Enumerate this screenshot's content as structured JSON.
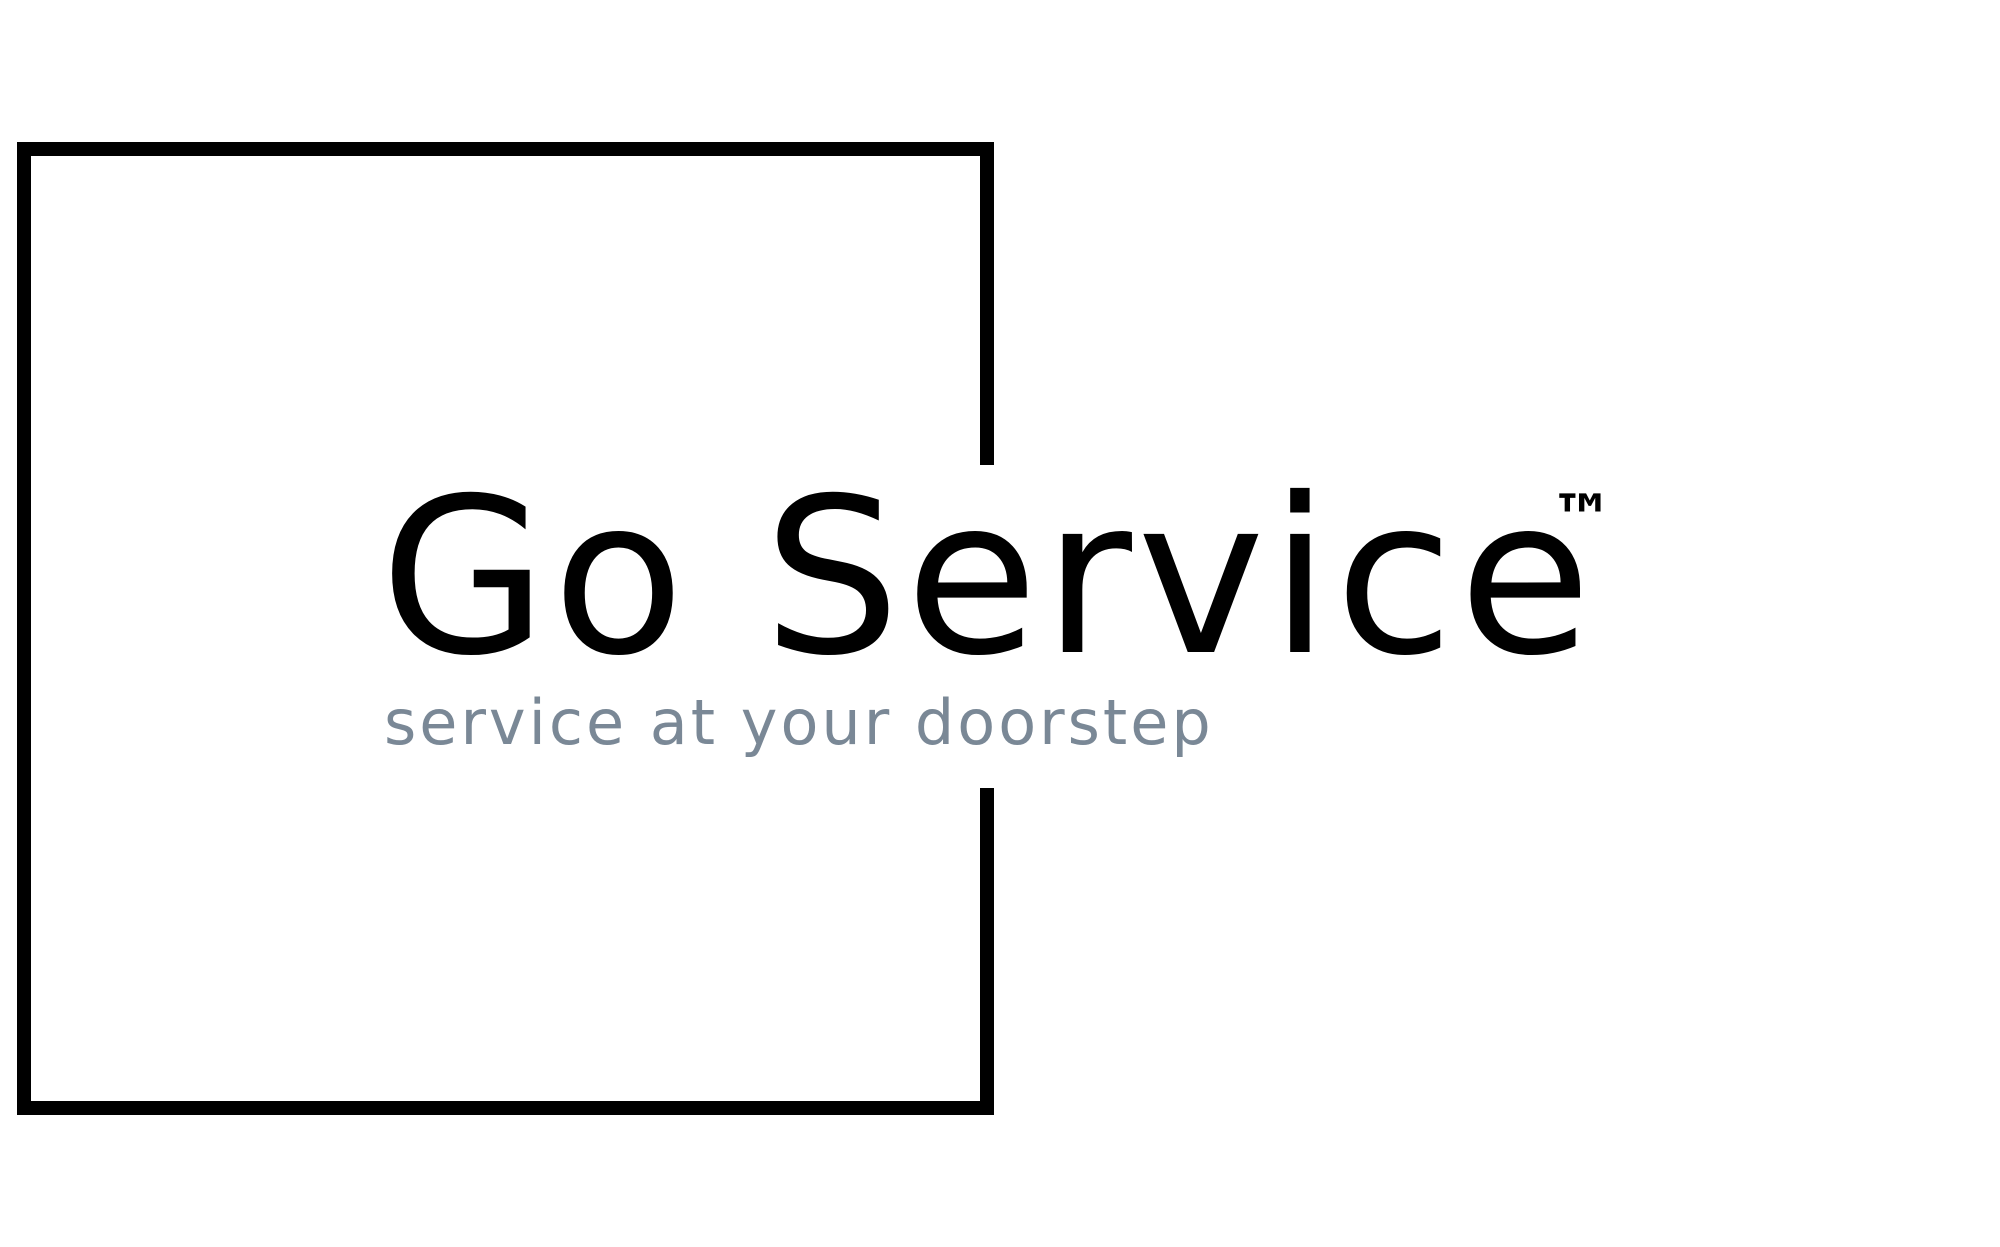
{
  "logo": {
    "name": "Go Service",
    "trademark": "™",
    "tagline": "service at your doorstep"
  },
  "colors": {
    "background": "#ffffff",
    "primary": "#000000",
    "tagline": "#7a8896"
  }
}
